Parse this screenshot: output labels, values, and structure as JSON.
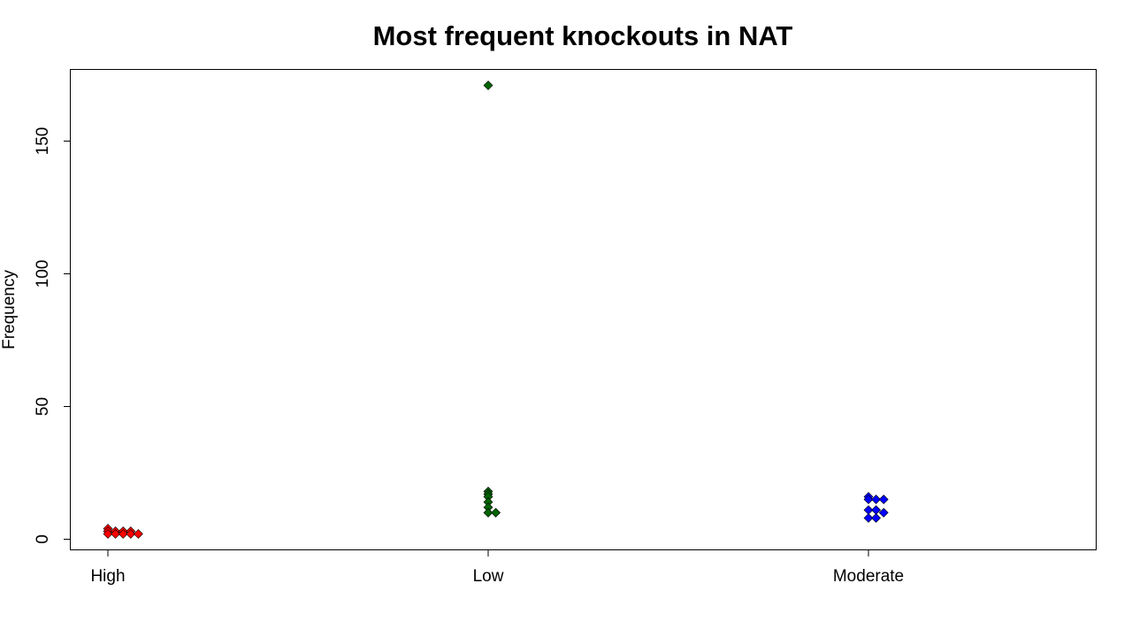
{
  "chart_data": {
    "type": "scatter",
    "title": "Most frequent knockouts in NAT",
    "xlabel": "",
    "ylabel": "Frequency",
    "categories": [
      "High",
      "Low",
      "Moderate"
    ],
    "ylim": [
      -4,
      177
    ],
    "yticks": [
      0,
      50,
      100,
      150
    ],
    "grid": false,
    "legend": "none",
    "series": [
      {
        "category": "High",
        "color": "#ff0000",
        "marker": "diamond",
        "points": [
          {
            "jitter": 0.0,
            "y": 4
          },
          {
            "jitter": 0.0,
            "y": 3
          },
          {
            "jitter": 0.0,
            "y": 2
          },
          {
            "jitter": 0.02,
            "y": 3
          },
          {
            "jitter": 0.02,
            "y": 2
          },
          {
            "jitter": 0.04,
            "y": 3
          },
          {
            "jitter": 0.04,
            "y": 2
          },
          {
            "jitter": 0.06,
            "y": 3
          },
          {
            "jitter": 0.06,
            "y": 2
          },
          {
            "jitter": 0.08,
            "y": 2
          }
        ]
      },
      {
        "category": "Low",
        "color": "#006400",
        "marker": "diamond",
        "points": [
          {
            "jitter": 0.0,
            "y": 171
          },
          {
            "jitter": 0.0,
            "y": 18
          },
          {
            "jitter": 0.0,
            "y": 17
          },
          {
            "jitter": 0.0,
            "y": 16
          },
          {
            "jitter": 0.0,
            "y": 14
          },
          {
            "jitter": 0.0,
            "y": 12
          },
          {
            "jitter": 0.0,
            "y": 10
          },
          {
            "jitter": 0.02,
            "y": 10
          }
        ]
      },
      {
        "category": "Moderate",
        "color": "#0000ff",
        "marker": "diamond",
        "points": [
          {
            "jitter": 0.0,
            "y": 16
          },
          {
            "jitter": 0.0,
            "y": 15
          },
          {
            "jitter": 0.0,
            "y": 11
          },
          {
            "jitter": 0.0,
            "y": 8
          },
          {
            "jitter": 0.02,
            "y": 15
          },
          {
            "jitter": 0.02,
            "y": 11
          },
          {
            "jitter": 0.02,
            "y": 8
          },
          {
            "jitter": 0.04,
            "y": 15
          },
          {
            "jitter": 0.04,
            "y": 10
          }
        ]
      }
    ]
  }
}
